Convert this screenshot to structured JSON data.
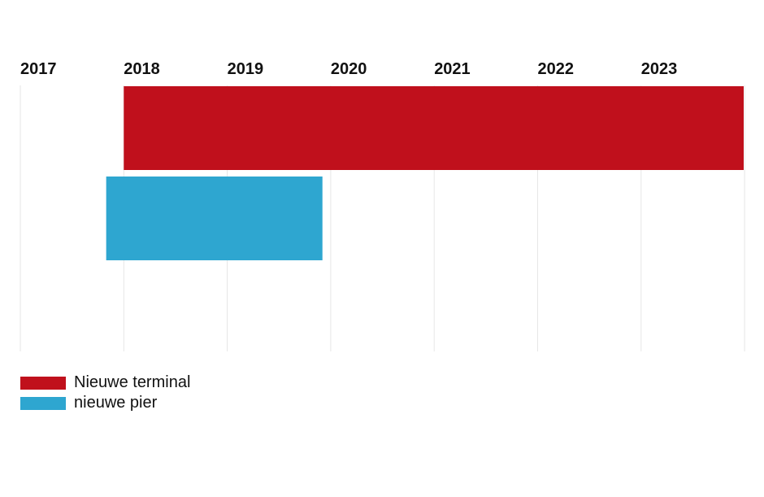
{
  "chart_data": {
    "type": "bar",
    "orientation": "horizontal-timeline",
    "title": "",
    "xlabel": "",
    "ylabel": "",
    "x_ticks": [
      "2017",
      "2018",
      "2019",
      "2020",
      "2021",
      "2022",
      "2023"
    ],
    "xlim": [
      2017,
      2024
    ],
    "grid": true,
    "legend_position": "bottom-left",
    "series": [
      {
        "name": "Nieuwe terminal",
        "start": 2018.0,
        "end": 2024.0,
        "color": "#c0101c"
      },
      {
        "name": "nieuwe pier",
        "start": 2017.83,
        "end": 2019.92,
        "color": "#2ea6d0"
      }
    ]
  }
}
